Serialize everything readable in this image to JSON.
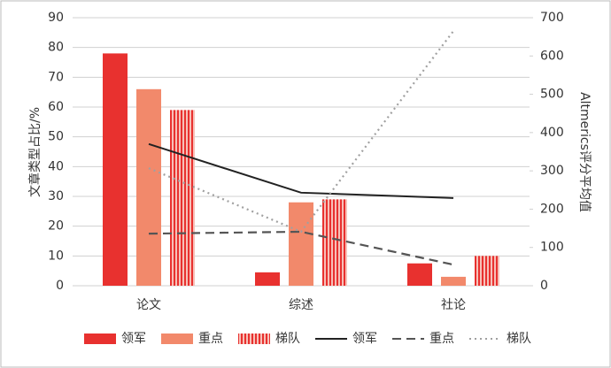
{
  "chart_data": {
    "type": "combo",
    "categories": [
      "论文",
      "综述",
      "社论"
    ],
    "ylabel": "文章类型占比/%",
    "y2label": "Altmerics评分平均值",
    "ylim": [
      0,
      90
    ],
    "yticks": [
      0,
      10,
      20,
      30,
      40,
      50,
      60,
      70,
      80,
      90
    ],
    "y2lim": [
      0,
      700
    ],
    "y2ticks": [
      0,
      100,
      200,
      300,
      400,
      500,
      600,
      700
    ],
    "grid": true,
    "legend": "bottom",
    "series": [
      {
        "name": "领军",
        "type": "bar",
        "color": "#e8312f",
        "fill": "solid",
        "values": [
          78,
          4.5,
          7.5
        ]
      },
      {
        "name": "重点",
        "type": "bar",
        "color": "#f2896b",
        "fill": "solid",
        "values": [
          66,
          28,
          3
        ]
      },
      {
        "name": "梯队",
        "type": "bar",
        "color": "#e8312f",
        "fill": "vertical-stripes",
        "values": [
          59,
          29,
          10
        ]
      },
      {
        "name": "领军",
        "type": "line",
        "axis": "y2",
        "color": "#222222",
        "line_style": "solid",
        "values": [
          370,
          243,
          229
        ]
      },
      {
        "name": "重点",
        "type": "line",
        "axis": "y2",
        "color": "#555555",
        "line_style": "dashed",
        "values": [
          136,
          141,
          55
        ]
      },
      {
        "name": "梯队",
        "type": "line",
        "axis": "y2",
        "color": "#a0a0a0",
        "line_style": "dotted",
        "values": [
          307,
          141,
          665
        ]
      }
    ]
  }
}
